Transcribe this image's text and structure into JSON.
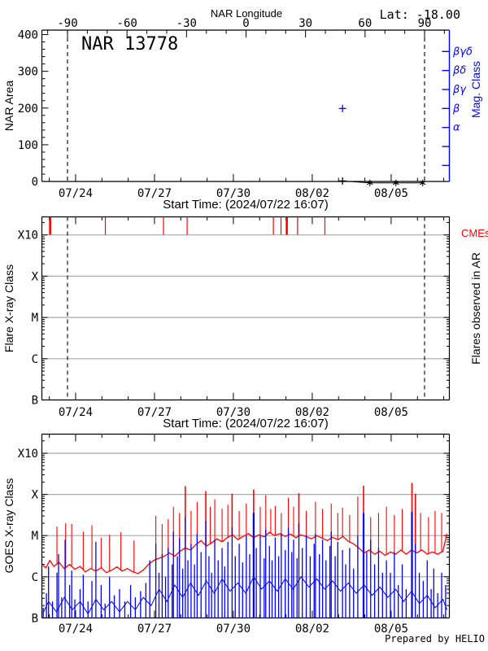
{
  "colors": {
    "accent_blue": "#0000ff",
    "accent_red": "#ff0000",
    "grid_gray": "#a9a9a9",
    "foreground": "#000000",
    "background": "#ffffff"
  },
  "top_panel": {
    "title": "NAR 13778",
    "lat_label": "Lat: -18.00",
    "longitude_axis": {
      "label": "NAR Longitude",
      "tick_values": [
        -90,
        -60,
        -30,
        0,
        30,
        60,
        90
      ],
      "minor_step": 10
    },
    "area_axis": {
      "label": "NAR Area",
      "tick_values": [
        0,
        100,
        200,
        300,
        400
      ],
      "minor_step": 20,
      "max": 412
    },
    "mag_axis": {
      "label": "Mag. Class",
      "classes": [
        "βγδ",
        "βδ",
        "βγ",
        "β",
        "α"
      ]
    },
    "limb_longitudes": [
      -90,
      90
    ]
  },
  "flare_panel": {
    "y_label": "Flare X-ray Class",
    "class_ticks": [
      "X10",
      "X",
      "M",
      "C",
      "B"
    ],
    "cme_label": "CMEs",
    "right_label": "Flares observed in AR"
  },
  "goes_panel": {
    "y_label": "GOES X-ray Class",
    "class_ticks": [
      "X10",
      "X",
      "M",
      "C",
      "B"
    ]
  },
  "time_axis": {
    "label": "Start Time: (2024/07/22 16:07)",
    "tick_labels": [
      "07/24",
      "07/27",
      "07/30",
      "08/02",
      "08/05"
    ],
    "tick_days": [
      1.329,
      4.329,
      7.329,
      10.329,
      13.329
    ],
    "minor_step_days": 1,
    "span_days": [
      0.05,
      15.52
    ]
  },
  "footer": {
    "prepared_by": "Prepared by HELIO"
  },
  "chart_data": [
    {
      "type": "scatter",
      "panel": "nar-area",
      "title": "NAR 13778",
      "noaa_region": 13778,
      "latitude_deg": -18.0,
      "ylabel": "NAR Area",
      "ylim": [
        0,
        412
      ],
      "xlabel": "Start Time: (2024/07/22 16:07)",
      "area_points": [
        {
          "day": 11.48,
          "area": 2,
          "marker": "plus",
          "color": "#000000"
        },
        {
          "day": 12.52,
          "area": 0,
          "marker": "asterisk",
          "color": "#000000"
        },
        {
          "day": 13.51,
          "area": 0,
          "marker": "asterisk",
          "color": "#000000"
        },
        {
          "day": 14.53,
          "area": 0,
          "marker": "asterisk",
          "color": "#000000"
        }
      ],
      "mag_class_points": [
        {
          "day": 11.48,
          "class": "β",
          "marker": "plus",
          "color": "#0000ff"
        }
      ]
    },
    {
      "type": "scatter",
      "panel": "flares-and-cmes",
      "ylabel": "Flare X-ray Class",
      "classes_bottom_to_top": [
        "B",
        "C",
        "M",
        "X",
        "X10"
      ],
      "flare_points": [],
      "cme_ticks": [
        {
          "day": 0.36,
          "width": 2.6
        },
        {
          "day": 2.46,
          "width": 1.2
        },
        {
          "day": 4.67,
          "width": 1.2
        },
        {
          "day": 5.57,
          "width": 1.2
        },
        {
          "day": 8.85,
          "width": 1.2
        },
        {
          "day": 9.14,
          "width": 1.2
        },
        {
          "day": 9.36,
          "width": 2.6
        },
        {
          "day": 9.77,
          "width": 1.2
        },
        {
          "day": 10.81,
          "width": 1.2
        }
      ]
    },
    {
      "type": "line",
      "panel": "goes-xray-flux",
      "ylabel": "GOES X-ray Class",
      "ylim_log10_wm2": [
        -7,
        -2.55
      ],
      "class_levels_log10": {
        "B": -7,
        "C": -6,
        "M": -5,
        "X": -4,
        "X10": -3
      },
      "red_base_log10": [
        [
          0,
          -5.72
        ],
        [
          0.2,
          -5.78
        ],
        [
          0.35,
          -5.6
        ],
        [
          0.5,
          -5.75
        ],
        [
          0.7,
          -5.65
        ],
        [
          0.9,
          -5.8
        ],
        [
          1.1,
          -5.7
        ],
        [
          1.3,
          -5.82
        ],
        [
          1.5,
          -5.75
        ],
        [
          1.7,
          -5.88
        ],
        [
          1.9,
          -5.8
        ],
        [
          2.1,
          -5.86
        ],
        [
          2.3,
          -5.78
        ],
        [
          2.5,
          -5.9
        ],
        [
          2.7,
          -5.84
        ],
        [
          2.9,
          -5.76
        ],
        [
          3.1,
          -5.86
        ],
        [
          3.3,
          -5.8
        ],
        [
          3.5,
          -5.88
        ],
        [
          3.7,
          -5.92
        ],
        [
          3.9,
          -5.84
        ],
        [
          4.1,
          -5.7
        ],
        [
          4.3,
          -5.6
        ],
        [
          4.5,
          -5.55
        ],
        [
          4.7,
          -5.5
        ],
        [
          4.9,
          -5.42
        ],
        [
          5.1,
          -5.5
        ],
        [
          5.3,
          -5.38
        ],
        [
          5.5,
          -5.3
        ],
        [
          5.7,
          -5.35
        ],
        [
          5.9,
          -5.22
        ],
        [
          6.1,
          -5.12
        ],
        [
          6.3,
          -5.25
        ],
        [
          6.5,
          -5.18
        ],
        [
          6.7,
          -5.08
        ],
        [
          6.9,
          -5.15
        ],
        [
          7.1,
          -5.05
        ],
        [
          7.3,
          -4.98
        ],
        [
          7.5,
          -5.1
        ],
        [
          7.7,
          -5.02
        ],
        [
          7.9,
          -4.95
        ],
        [
          8.1,
          -5.05
        ],
        [
          8.3,
          -4.98
        ],
        [
          8.5,
          -5.03
        ],
        [
          8.7,
          -4.92
        ],
        [
          8.9,
          -5.0
        ],
        [
          9.1,
          -4.95
        ],
        [
          9.3,
          -5.02
        ],
        [
          9.5,
          -4.96
        ],
        [
          9.7,
          -5.05
        ],
        [
          9.9,
          -4.98
        ],
        [
          10.1,
          -5.02
        ],
        [
          10.3,
          -5.08
        ],
        [
          10.5,
          -5.0
        ],
        [
          10.7,
          -5.06
        ],
        [
          10.9,
          -5.12
        ],
        [
          11.1,
          -5.04
        ],
        [
          11.3,
          -5.1
        ],
        [
          11.5,
          -5.02
        ],
        [
          11.7,
          -5.14
        ],
        [
          11.9,
          -5.2
        ],
        [
          12.1,
          -5.3
        ],
        [
          12.3,
          -5.42
        ],
        [
          12.5,
          -5.35
        ],
        [
          12.7,
          -5.45
        ],
        [
          12.9,
          -5.38
        ],
        [
          13.1,
          -5.48
        ],
        [
          13.3,
          -5.4
        ],
        [
          13.5,
          -5.45
        ],
        [
          13.7,
          -5.35
        ],
        [
          13.9,
          -5.45
        ],
        [
          14.1,
          -5.35
        ],
        [
          14.3,
          -5.42
        ],
        [
          14.5,
          -5.35
        ],
        [
          14.7,
          -5.45
        ],
        [
          14.9,
          -5.4
        ],
        [
          15.1,
          -5.45
        ],
        [
          15.3,
          -5.38
        ],
        [
          15.45,
          -4.95
        ]
      ],
      "red_spikes_log10": [
        [
          0.62,
          -4.78
        ],
        [
          0.95,
          -4.7
        ],
        [
          1.18,
          -4.72
        ],
        [
          1.62,
          -4.9
        ],
        [
          1.95,
          -4.75
        ],
        [
          2.3,
          -5.05
        ],
        [
          2.62,
          -4.98
        ],
        [
          3.05,
          -4.92
        ],
        [
          3.55,
          -5.12
        ],
        [
          4.38,
          -4.52
        ],
        [
          4.62,
          -4.72
        ],
        [
          4.85,
          -4.6
        ],
        [
          5.05,
          -4.3
        ],
        [
          5.28,
          -4.45
        ],
        [
          5.5,
          -3.8
        ],
        [
          5.72,
          -4.4
        ],
        [
          5.95,
          -4.18
        ],
        [
          6.28,
          -3.92
        ],
        [
          6.45,
          -4.3
        ],
        [
          6.62,
          -4.12
        ],
        [
          6.9,
          -4.35
        ],
        [
          7.12,
          -4.25
        ],
        [
          7.28,
          -3.98
        ],
        [
          7.55,
          -4.4
        ],
        [
          7.82,
          -4.22
        ],
        [
          8.1,
          -3.88
        ],
        [
          8.35,
          -4.3
        ],
        [
          8.56,
          -4.02
        ],
        [
          8.75,
          -4.35
        ],
        [
          8.92,
          -4.28
        ],
        [
          9.15,
          -4.45
        ],
        [
          9.42,
          -4.08
        ],
        [
          9.62,
          -4.3
        ],
        [
          9.82,
          -3.97
        ],
        [
          10.1,
          -4.4
        ],
        [
          10.45,
          -4.18
        ],
        [
          10.72,
          -4.35
        ],
        [
          11.05,
          -4.22
        ],
        [
          11.3,
          -4.45
        ],
        [
          11.48,
          -4.32
        ],
        [
          11.75,
          -4.5
        ],
        [
          12.06,
          -4.05
        ],
        [
          12.28,
          -3.79
        ],
        [
          12.55,
          -4.55
        ],
        [
          12.85,
          -4.45
        ],
        [
          13.15,
          -4.3
        ],
        [
          13.45,
          -4.5
        ],
        [
          13.75,
          -4.35
        ],
        [
          14.12,
          -3.72
        ],
        [
          14.25,
          -3.98
        ],
        [
          14.45,
          -4.45
        ],
        [
          14.75,
          -4.55
        ],
        [
          15.0,
          -4.4
        ],
        [
          15.25,
          -4.45
        ]
      ],
      "blue_base_log10": [
        [
          0,
          -6.9
        ],
        [
          0.3,
          -6.6
        ],
        [
          0.6,
          -6.85
        ],
        [
          0.9,
          -6.5
        ],
        [
          1.2,
          -6.8
        ],
        [
          1.5,
          -6.6
        ],
        [
          1.8,
          -6.9
        ],
        [
          2.1,
          -6.55
        ],
        [
          2.4,
          -6.8
        ],
        [
          2.7,
          -6.6
        ],
        [
          3.0,
          -6.85
        ],
        [
          3.3,
          -6.6
        ],
        [
          3.6,
          -6.8
        ],
        [
          3.9,
          -6.5
        ],
        [
          4.2,
          -6.7
        ],
        [
          4.5,
          -6.3
        ],
        [
          4.8,
          -6.6
        ],
        [
          5.1,
          -6.2
        ],
        [
          5.4,
          -6.5
        ],
        [
          5.7,
          -6.15
        ],
        [
          6.0,
          -6.45
        ],
        [
          6.3,
          -6.1
        ],
        [
          6.6,
          -6.4
        ],
        [
          6.9,
          -6.05
        ],
        [
          7.2,
          -6.35
        ],
        [
          7.5,
          -6.15
        ],
        [
          7.8,
          -6.4
        ],
        [
          8.1,
          -6.0
        ],
        [
          8.4,
          -6.3
        ],
        [
          8.7,
          -6.1
        ],
        [
          9.0,
          -6.35
        ],
        [
          9.3,
          -6.05
        ],
        [
          9.6,
          -6.3
        ],
        [
          9.9,
          -6.0
        ],
        [
          10.2,
          -6.25
        ],
        [
          10.5,
          -6.05
        ],
        [
          10.8,
          -6.3
        ],
        [
          11.1,
          -6.1
        ],
        [
          11.4,
          -6.35
        ],
        [
          11.7,
          -6.15
        ],
        [
          12.0,
          -6.4
        ],
        [
          12.3,
          -6.2
        ],
        [
          12.6,
          -6.45
        ],
        [
          12.9,
          -6.25
        ],
        [
          13.2,
          -6.5
        ],
        [
          13.5,
          -6.3
        ],
        [
          13.8,
          -6.6
        ],
        [
          14.1,
          -6.35
        ],
        [
          14.4,
          -6.65
        ],
        [
          14.7,
          -6.45
        ],
        [
          15.0,
          -6.75
        ],
        [
          15.3,
          -6.55
        ],
        [
          15.45,
          -6.8
        ]
      ],
      "blue_spikes_log10": [
        [
          0.1,
          -6.75
        ],
        [
          0.22,
          -6.4
        ],
        [
          0.3,
          -5.75
        ],
        [
          0.45,
          -6.6
        ],
        [
          0.62,
          -5.9
        ],
        [
          0.68,
          -5.45
        ],
        [
          0.8,
          -6.5
        ],
        [
          0.93,
          -5.1
        ],
        [
          1.1,
          -6.2
        ],
        [
          1.18,
          -5.85
        ],
        [
          1.3,
          -6.55
        ],
        [
          1.5,
          -6.3
        ],
        [
          1.62,
          -5.95
        ],
        [
          1.8,
          -6.6
        ],
        [
          1.95,
          -6.1
        ],
        [
          2.1,
          -5.15
        ],
        [
          2.3,
          -6.2
        ],
        [
          2.45,
          -6.65
        ],
        [
          2.62,
          -6.0
        ],
        [
          2.8,
          -6.45
        ],
        [
          3.0,
          -6.3
        ],
        [
          3.2,
          -6.6
        ],
        [
          3.42,
          -6.2
        ],
        [
          3.6,
          -6.5
        ],
        [
          3.8,
          -6.35
        ],
        [
          4.0,
          -6.15
        ],
        [
          4.15,
          -5.6
        ],
        [
          4.38,
          -5.2
        ],
        [
          4.5,
          -5.9
        ],
        [
          4.62,
          -5.45
        ],
        [
          4.75,
          -6.0
        ],
        [
          4.85,
          -5.3
        ],
        [
          5.0,
          -5.7
        ],
        [
          5.05,
          -4.9
        ],
        [
          5.2,
          -5.5
        ],
        [
          5.28,
          -5.05
        ],
        [
          5.4,
          -5.8
        ],
        [
          5.5,
          -4.55
        ],
        [
          5.6,
          -5.6
        ],
        [
          5.72,
          -5.2
        ],
        [
          5.85,
          -5.7
        ],
        [
          5.95,
          -4.95
        ],
        [
          6.1,
          -5.4
        ],
        [
          6.28,
          -4.65
        ],
        [
          6.4,
          -5.5
        ],
        [
          6.5,
          -5.9
        ],
        [
          6.62,
          -5.1
        ],
        [
          6.75,
          -5.6
        ],
        [
          6.9,
          -5.3
        ],
        [
          7.0,
          -5.75
        ],
        [
          7.12,
          -5.15
        ],
        [
          7.28,
          -4.8
        ],
        [
          7.4,
          -5.5
        ],
        [
          7.55,
          -5.2
        ],
        [
          7.68,
          -5.65
        ],
        [
          7.82,
          -5.0
        ],
        [
          7.95,
          -5.45
        ],
        [
          8.1,
          -4.45
        ],
        [
          8.2,
          -5.3
        ],
        [
          8.35,
          -5.0
        ],
        [
          8.5,
          -5.55
        ],
        [
          8.56,
          -4.85
        ],
        [
          8.7,
          -5.25
        ],
        [
          8.8,
          -5.6
        ],
        [
          8.92,
          -5.05
        ],
        [
          9.05,
          -5.5
        ],
        [
          9.15,
          -4.95
        ],
        [
          9.3,
          -5.35
        ],
        [
          9.42,
          -4.8
        ],
        [
          9.55,
          -5.4
        ],
        [
          9.62,
          -5.1
        ],
        [
          9.75,
          -5.55
        ],
        [
          9.82,
          -4.7
        ],
        [
          9.95,
          -5.3
        ],
        [
          10.1,
          -5.0
        ],
        [
          10.25,
          -5.5
        ],
        [
          10.4,
          -5.2
        ],
        [
          10.45,
          -4.95
        ],
        [
          10.6,
          -5.45
        ],
        [
          10.72,
          -5.1
        ],
        [
          10.85,
          -5.6
        ],
        [
          11.0,
          -5.25
        ],
        [
          11.05,
          -4.9
        ],
        [
          11.2,
          -5.5
        ],
        [
          11.3,
          -5.15
        ],
        [
          11.48,
          -5.35
        ],
        [
          11.6,
          -5.7
        ],
        [
          11.75,
          -5.3
        ],
        [
          11.9,
          -5.8
        ],
        [
          12.06,
          -5.0
        ],
        [
          12.28,
          -4.45
        ],
        [
          12.4,
          -5.4
        ],
        [
          12.55,
          -5.1
        ],
        [
          12.7,
          -5.7
        ],
        [
          12.85,
          -5.3
        ],
        [
          13.0,
          -5.9
        ],
        [
          13.15,
          -5.6
        ],
        [
          13.3,
          -5.9
        ],
        [
          13.45,
          -5.4
        ],
        [
          13.6,
          -6.2
        ],
        [
          13.75,
          -5.7
        ],
        [
          13.9,
          -6.3
        ],
        [
          14.12,
          -4.42
        ],
        [
          14.25,
          -5.2
        ],
        [
          14.4,
          -5.9
        ],
        [
          14.55,
          -6.1
        ],
        [
          14.7,
          -5.6
        ],
        [
          14.85,
          -6.3
        ],
        [
          14.95,
          -5.8
        ],
        [
          15.1,
          -6.4
        ],
        [
          15.25,
          -5.9
        ],
        [
          15.4,
          -6.2
        ]
      ],
      "blue_wide_spike_days": [
        8.1,
        12.28,
        14.12
      ]
    }
  ]
}
